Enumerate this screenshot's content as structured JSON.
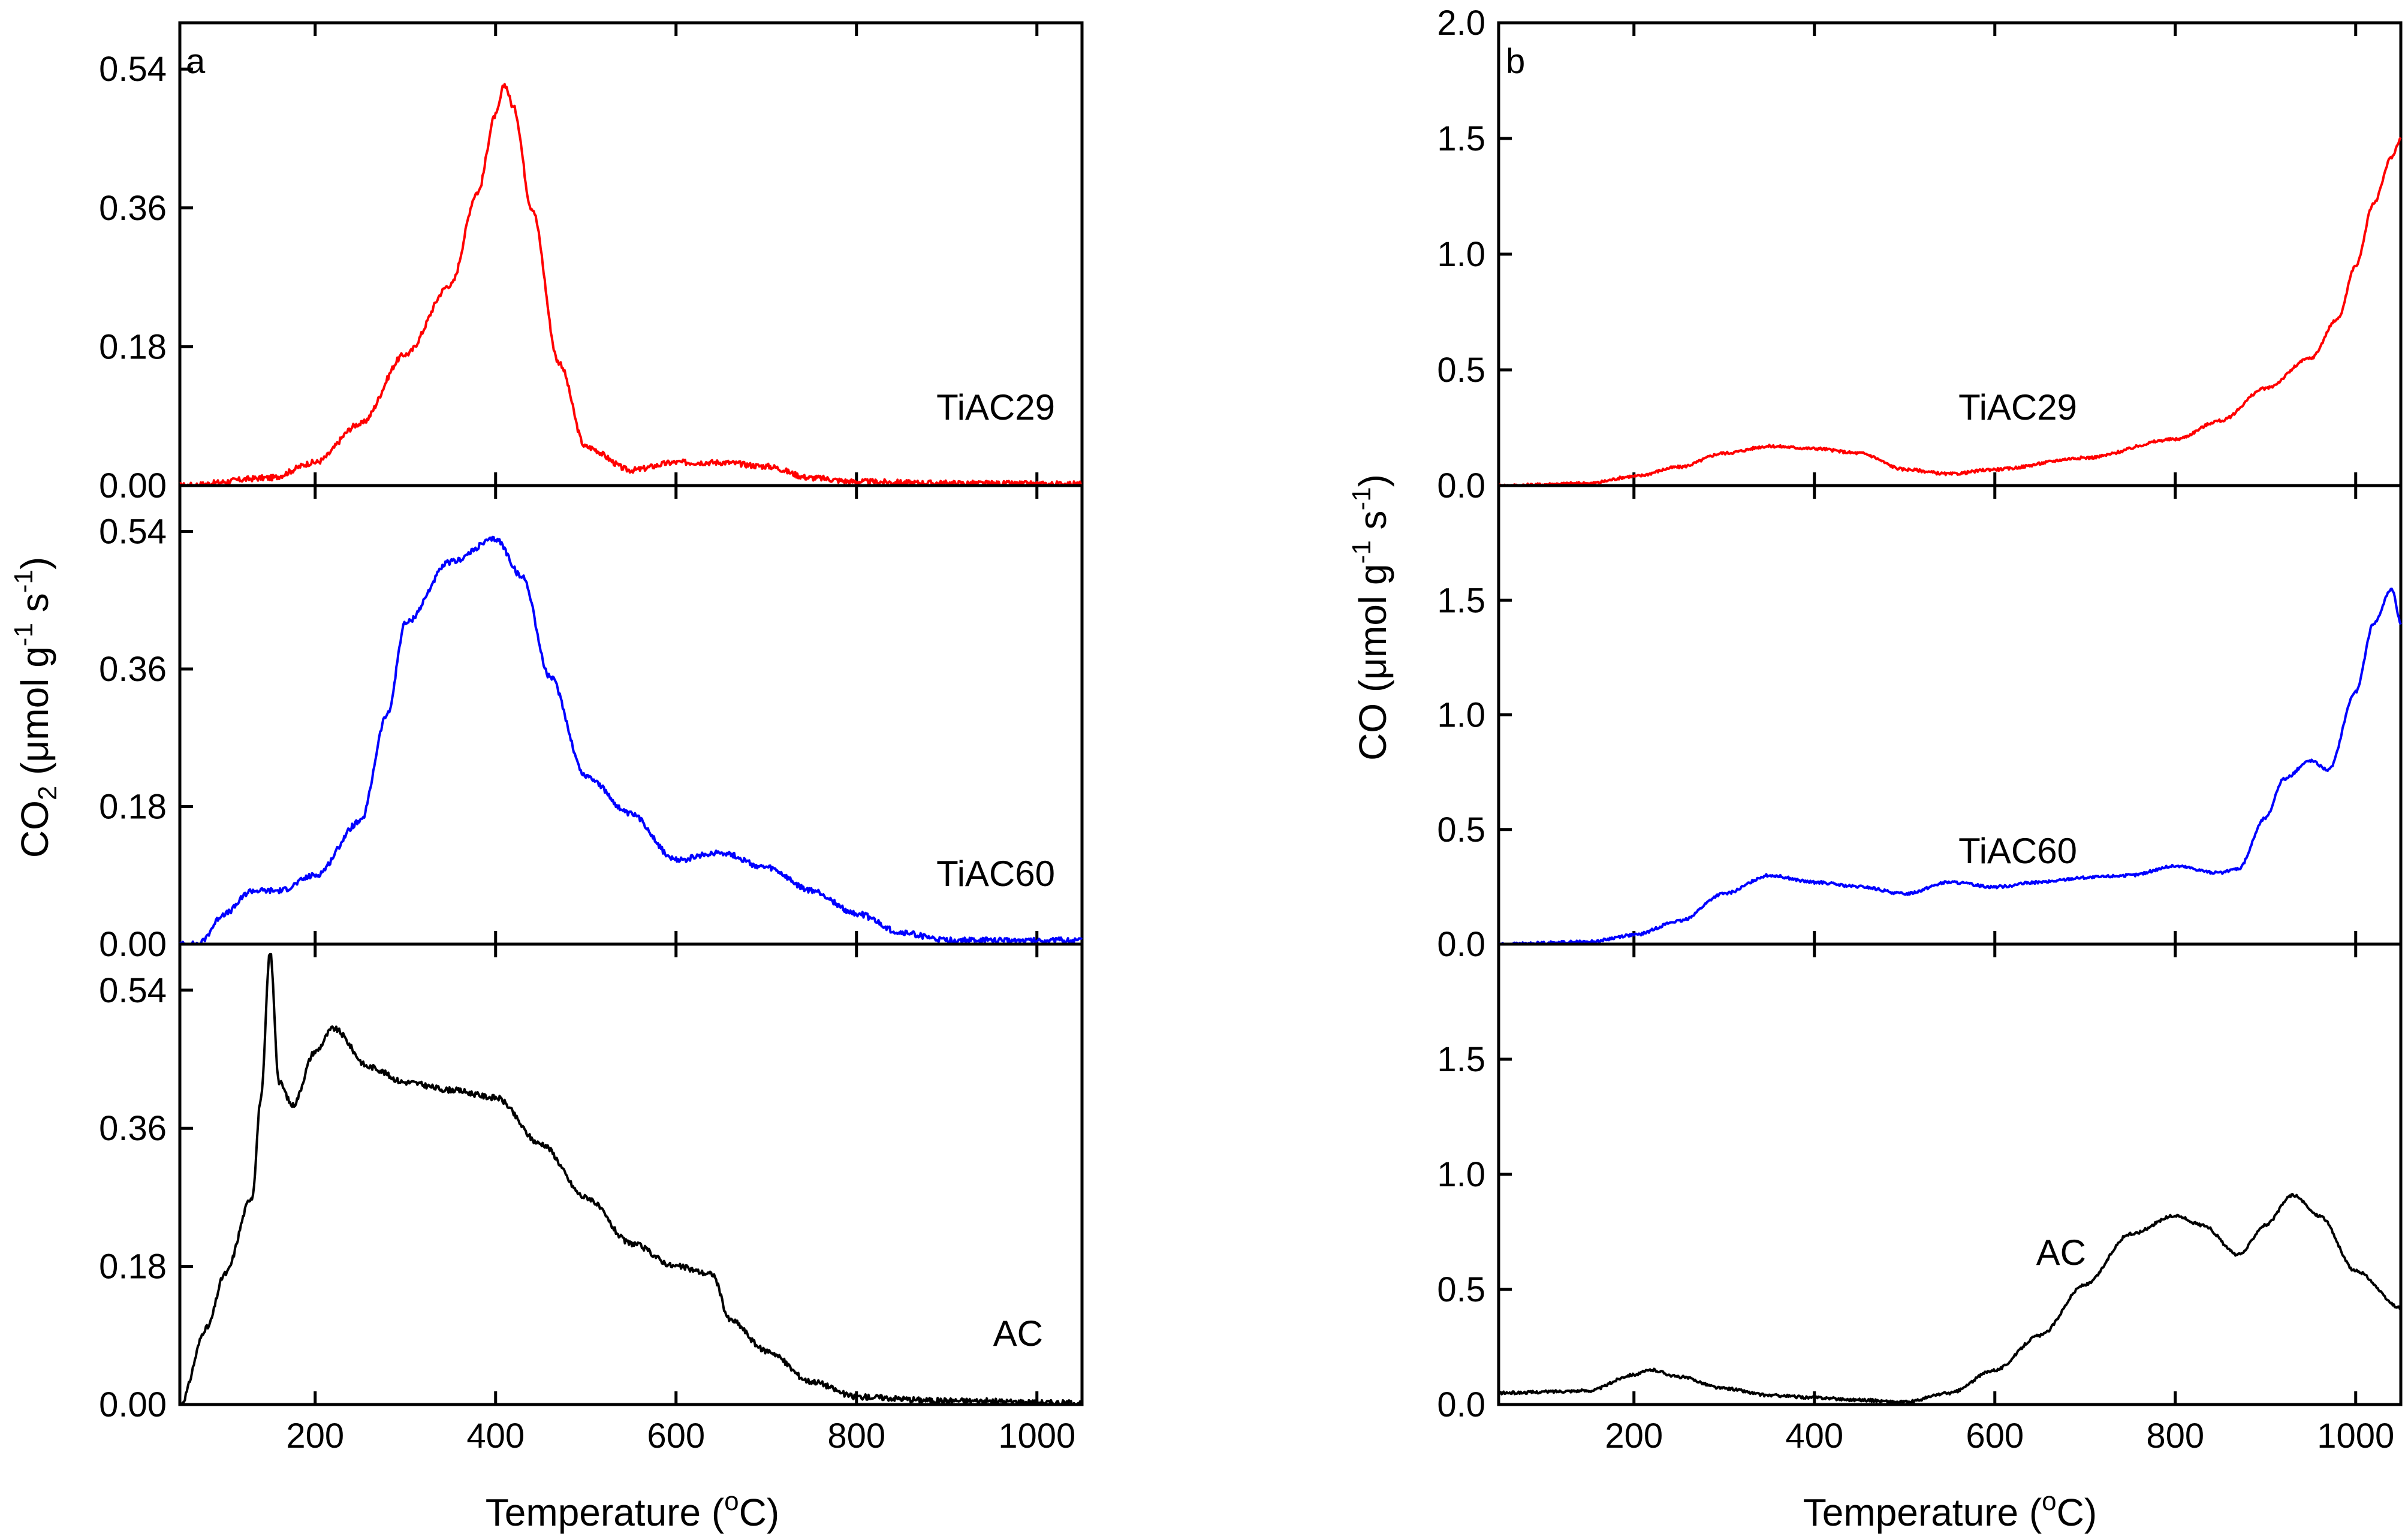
{
  "figure": {
    "a": {
      "letter": "a",
      "ylabel_main": "CO",
      "ylabel_sub": "2",
      "ylabel_rest": " (μmol g",
      "ylabel_sup1": "-1",
      "ylabel_mid": " s",
      "ylabel_sup2": "-1",
      "ylabel_end": ")"
    },
    "b": {
      "letter": "b",
      "ylabel_main": "CO (μmol g",
      "ylabel_sup1": "-1",
      "ylabel_mid": " s",
      "ylabel_sup2": "-1",
      "ylabel_end": ")"
    },
    "xlabel_pre": "Temperature (",
    "xlabel_sup": "o",
    "xlabel_post": "C)"
  },
  "chart_data": [
    {
      "panel": "a",
      "type": "line",
      "xlabel": "Temperature (oC)",
      "ylabel": "CO2 (μmol g-1 s-1)",
      "xlim": [
        50,
        1050
      ],
      "xticks": [
        200,
        400,
        600,
        800,
        1000
      ],
      "subplots": [
        {
          "name": "TiAC29",
          "color": "#ff0000",
          "label": "TiAC29",
          "ylim": [
            0,
            0.6
          ],
          "yticks": [
            0,
            0.18,
            0.36,
            0.54
          ],
          "ytick_labels": [
            "0.00",
            "0.18",
            "0.36",
            "0.54"
          ],
          "x": [
            50,
            150,
            200,
            250,
            300,
            350,
            380,
            400,
            410,
            420,
            440,
            470,
            500,
            550,
            600,
            650,
            700,
            750,
            800,
            900,
            1000,
            1050
          ],
          "y": [
            0.0,
            0.01,
            0.03,
            0.08,
            0.17,
            0.26,
            0.38,
            0.48,
            0.52,
            0.49,
            0.36,
            0.16,
            0.05,
            0.02,
            0.03,
            0.03,
            0.025,
            0.01,
            0.005,
            0.003,
            0.002,
            0.002
          ]
        },
        {
          "name": "TiAC60",
          "color": "#0000ff",
          "label": "TiAC60",
          "ylim": [
            0,
            0.6
          ],
          "yticks": [
            0,
            0.18,
            0.36,
            0.54
          ],
          "ytick_labels": [
            "0.00",
            "0.18",
            "0.36",
            "0.54"
          ],
          "x": [
            50,
            70,
            100,
            130,
            160,
            200,
            250,
            280,
            300,
            350,
            400,
            430,
            460,
            500,
            550,
            600,
            650,
            700,
            750,
            800,
            850,
            900,
            1050
          ],
          "y": [
            0.0,
            0.0,
            0.04,
            0.07,
            0.07,
            0.09,
            0.16,
            0.3,
            0.42,
            0.5,
            0.53,
            0.48,
            0.35,
            0.22,
            0.17,
            0.11,
            0.12,
            0.1,
            0.07,
            0.04,
            0.015,
            0.005,
            0.005
          ]
        },
        {
          "name": "AC",
          "color": "#000000",
          "label": "AC",
          "ylim": [
            0,
            0.6
          ],
          "yticks": [
            0,
            0.18,
            0.36,
            0.54
          ],
          "ytick_labels": [
            "0.00",
            "0.18",
            "0.36",
            "0.54"
          ],
          "x": [
            50,
            80,
            100,
            130,
            140,
            150,
            160,
            175,
            200,
            220,
            260,
            300,
            350,
            400,
            450,
            500,
            550,
            600,
            640,
            660,
            700,
            750,
            800,
            900,
            1050
          ],
          "y": [
            0.0,
            0.1,
            0.17,
            0.27,
            0.4,
            0.59,
            0.42,
            0.39,
            0.46,
            0.49,
            0.44,
            0.42,
            0.41,
            0.4,
            0.34,
            0.27,
            0.21,
            0.18,
            0.17,
            0.11,
            0.07,
            0.03,
            0.01,
            0.005,
            0.002
          ]
        }
      ]
    },
    {
      "panel": "b",
      "type": "line",
      "xlabel": "Temperature (oC)",
      "ylabel": "CO (μmol g-1 s-1)",
      "xlim": [
        50,
        1050
      ],
      "xticks": [
        200,
        400,
        600,
        800,
        1000
      ],
      "subplots": [
        {
          "name": "TiAC29",
          "color": "#ff0000",
          "label": "TiAC29",
          "ylim": [
            0,
            2.0
          ],
          "yticks": [
            0,
            0.5,
            1.0,
            1.5,
            2.0
          ],
          "ytick_labels": [
            "0.0",
            "0.5",
            "1.0",
            "1.5",
            "2.0"
          ],
          "x": [
            50,
            150,
            200,
            250,
            300,
            350,
            400,
            450,
            500,
            550,
            600,
            700,
            800,
            850,
            900,
            950,
            980,
            1000,
            1020,
            1040,
            1050
          ],
          "y": [
            0.0,
            0.01,
            0.04,
            0.08,
            0.14,
            0.17,
            0.16,
            0.14,
            0.07,
            0.05,
            0.07,
            0.12,
            0.2,
            0.28,
            0.42,
            0.55,
            0.72,
            0.95,
            1.22,
            1.42,
            1.5
          ]
        },
        {
          "name": "TiAC60",
          "color": "#0000ff",
          "label": "TiAC60",
          "ylim": [
            0,
            2.0
          ],
          "yticks": [
            0,
            0.5,
            1.0,
            1.5
          ],
          "ytick_labels": [
            "0.0",
            "0.5",
            "1.0",
            "1.5"
          ],
          "x": [
            50,
            150,
            200,
            250,
            300,
            350,
            400,
            450,
            500,
            550,
            600,
            650,
            700,
            750,
            800,
            850,
            870,
            900,
            920,
            950,
            970,
            1000,
            1020,
            1040,
            1050
          ],
          "y": [
            0.0,
            0.01,
            0.04,
            0.1,
            0.22,
            0.3,
            0.27,
            0.25,
            0.22,
            0.27,
            0.25,
            0.27,
            0.29,
            0.3,
            0.34,
            0.31,
            0.33,
            0.55,
            0.72,
            0.8,
            0.76,
            1.1,
            1.4,
            1.55,
            1.4
          ]
        },
        {
          "name": "AC",
          "color": "#000000",
          "label": "AC",
          "ylim": [
            0,
            2.0
          ],
          "yticks": [
            0,
            0.5,
            1.0,
            1.5
          ],
          "ytick_labels": [
            "0.0",
            "0.5",
            "1.0",
            "1.5"
          ],
          "x": [
            50,
            150,
            200,
            220,
            250,
            300,
            350,
            400,
            450,
            500,
            550,
            600,
            650,
            700,
            750,
            800,
            830,
            870,
            900,
            930,
            960,
            1000,
            1050
          ],
          "y": [
            0.05,
            0.06,
            0.13,
            0.15,
            0.12,
            0.07,
            0.04,
            0.03,
            0.02,
            0.01,
            0.05,
            0.15,
            0.3,
            0.52,
            0.74,
            0.82,
            0.78,
            0.65,
            0.78,
            0.91,
            0.82,
            0.58,
            0.42
          ]
        }
      ]
    }
  ]
}
